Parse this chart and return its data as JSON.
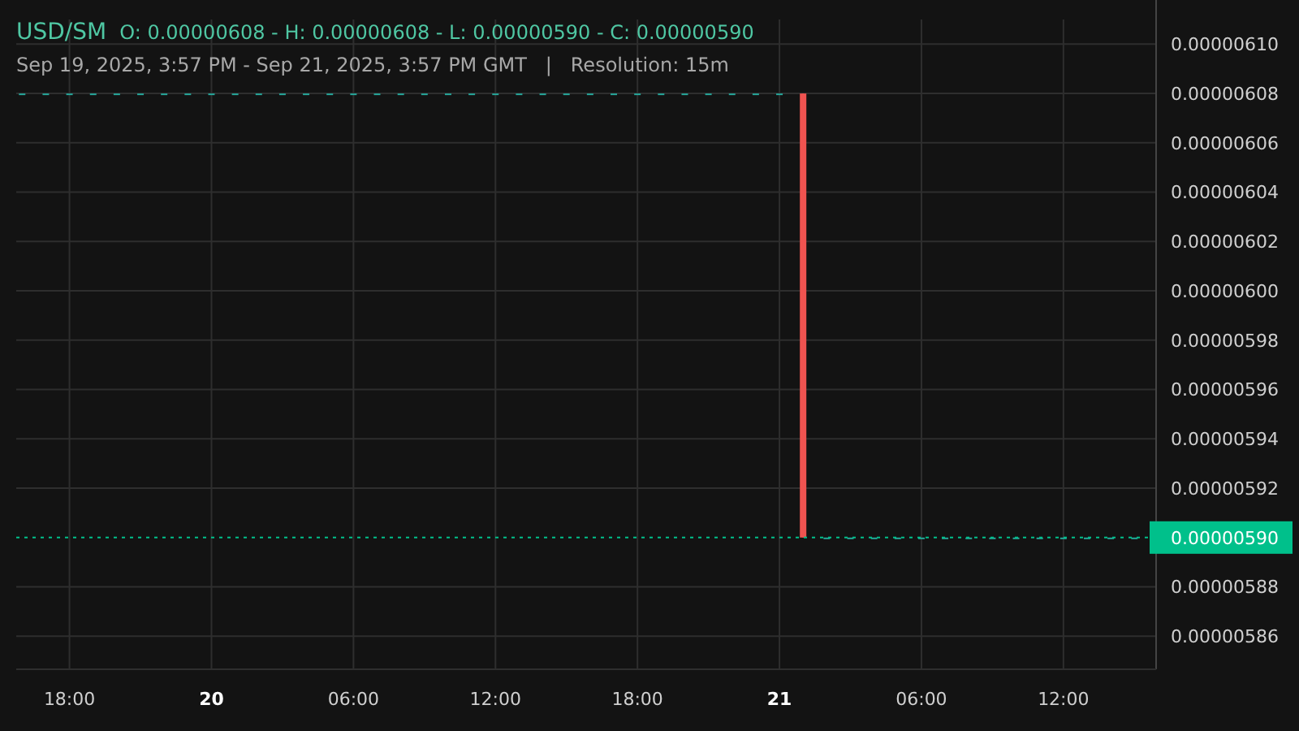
{
  "chart_data": {
    "type": "candlestick",
    "title": "USD/SM",
    "subtitle": "Sep 19, 2025, 3:57 PM - Sep 21, 2025, 3:57 PM GMT   |   Resolution: 15m",
    "annotations": [
      "O: 0.00000608 - H: 0.00000608 - L: 0.00000590 - C: 0.00000590"
    ],
    "x": [
      "2025-09-19T16:00",
      "2025-09-19T17:00",
      "2025-09-19T18:00",
      "2025-09-19T19:00",
      "2025-09-19T20:00",
      "2025-09-19T21:00",
      "2025-09-19T22:00",
      "2025-09-19T23:00",
      "2025-09-20T00:00",
      "2025-09-20T01:00",
      "2025-09-20T02:00",
      "2025-09-20T03:00",
      "2025-09-20T04:00",
      "2025-09-20T05:00",
      "2025-09-20T06:00",
      "2025-09-20T07:00",
      "2025-09-20T08:00",
      "2025-09-20T09:00",
      "2025-09-20T10:00",
      "2025-09-20T11:00",
      "2025-09-20T12:00",
      "2025-09-20T13:00",
      "2025-09-20T14:00",
      "2025-09-20T15:00",
      "2025-09-20T16:00",
      "2025-09-20T17:00",
      "2025-09-20T18:00",
      "2025-09-20T19:00",
      "2025-09-20T20:00",
      "2025-09-20T21:00",
      "2025-09-20T22:00",
      "2025-09-20T23:00",
      "2025-09-21T00:00",
      "2025-09-21T01:00",
      "2025-09-21T02:00",
      "2025-09-21T03:00",
      "2025-09-21T04:00",
      "2025-09-21T05:00",
      "2025-09-21T06:00",
      "2025-09-21T07:00",
      "2025-09-21T08:00",
      "2025-09-21T09:00",
      "2025-09-21T10:00",
      "2025-09-21T11:00",
      "2025-09-21T12:00",
      "2025-09-21T13:00",
      "2025-09-21T14:00",
      "2025-09-21T15:00"
    ],
    "ohlc": [
      [
        6.08e-06,
        6.08e-06,
        6.08e-06,
        6.08e-06
      ],
      [
        6.08e-06,
        6.08e-06,
        6.08e-06,
        6.08e-06
      ],
      [
        6.08e-06,
        6.08e-06,
        6.08e-06,
        6.08e-06
      ],
      [
        6.08e-06,
        6.08e-06,
        6.08e-06,
        6.08e-06
      ],
      [
        6.08e-06,
        6.08e-06,
        6.08e-06,
        6.08e-06
      ],
      [
        6.08e-06,
        6.08e-06,
        6.08e-06,
        6.08e-06
      ],
      [
        6.08e-06,
        6.08e-06,
        6.08e-06,
        6.08e-06
      ],
      [
        6.08e-06,
        6.08e-06,
        6.08e-06,
        6.08e-06
      ],
      [
        6.08e-06,
        6.08e-06,
        6.08e-06,
        6.08e-06
      ],
      [
        6.08e-06,
        6.08e-06,
        6.08e-06,
        6.08e-06
      ],
      [
        6.08e-06,
        6.08e-06,
        6.08e-06,
        6.08e-06
      ],
      [
        6.08e-06,
        6.08e-06,
        6.08e-06,
        6.08e-06
      ],
      [
        6.08e-06,
        6.08e-06,
        6.08e-06,
        6.08e-06
      ],
      [
        6.08e-06,
        6.08e-06,
        6.08e-06,
        6.08e-06
      ],
      [
        6.08e-06,
        6.08e-06,
        6.08e-06,
        6.08e-06
      ],
      [
        6.08e-06,
        6.08e-06,
        6.08e-06,
        6.08e-06
      ],
      [
        6.08e-06,
        6.08e-06,
        6.08e-06,
        6.08e-06
      ],
      [
        6.08e-06,
        6.08e-06,
        6.08e-06,
        6.08e-06
      ],
      [
        6.08e-06,
        6.08e-06,
        6.08e-06,
        6.08e-06
      ],
      [
        6.08e-06,
        6.08e-06,
        6.08e-06,
        6.08e-06
      ],
      [
        6.08e-06,
        6.08e-06,
        6.08e-06,
        6.08e-06
      ],
      [
        6.08e-06,
        6.08e-06,
        6.08e-06,
        6.08e-06
      ],
      [
        6.08e-06,
        6.08e-06,
        6.08e-06,
        6.08e-06
      ],
      [
        6.08e-06,
        6.08e-06,
        6.08e-06,
        6.08e-06
      ],
      [
        6.08e-06,
        6.08e-06,
        6.08e-06,
        6.08e-06
      ],
      [
        6.08e-06,
        6.08e-06,
        6.08e-06,
        6.08e-06
      ],
      [
        6.08e-06,
        6.08e-06,
        6.08e-06,
        6.08e-06
      ],
      [
        6.08e-06,
        6.08e-06,
        6.08e-06,
        6.08e-06
      ],
      [
        6.08e-06,
        6.08e-06,
        6.08e-06,
        6.08e-06
      ],
      [
        6.08e-06,
        6.08e-06,
        6.08e-06,
        6.08e-06
      ],
      [
        6.08e-06,
        6.08e-06,
        6.08e-06,
        6.08e-06
      ],
      [
        6.08e-06,
        6.08e-06,
        6.08e-06,
        6.08e-06
      ],
      [
        6.08e-06,
        6.08e-06,
        6.08e-06,
        6.08e-06
      ],
      [
        6.08e-06,
        6.08e-06,
        5.9e-06,
        5.9e-06
      ],
      [
        5.9e-06,
        5.9e-06,
        5.9e-06,
        5.9e-06
      ],
      [
        5.9e-06,
        5.9e-06,
        5.9e-06,
        5.9e-06
      ],
      [
        5.9e-06,
        5.9e-06,
        5.9e-06,
        5.9e-06
      ],
      [
        5.9e-06,
        5.9e-06,
        5.9e-06,
        5.9e-06
      ],
      [
        5.9e-06,
        5.9e-06,
        5.9e-06,
        5.9e-06
      ],
      [
        5.9e-06,
        5.9e-06,
        5.9e-06,
        5.9e-06
      ],
      [
        5.9e-06,
        5.9e-06,
        5.9e-06,
        5.9e-06
      ],
      [
        5.9e-06,
        5.9e-06,
        5.9e-06,
        5.9e-06
      ],
      [
        5.9e-06,
        5.9e-06,
        5.9e-06,
        5.9e-06
      ],
      [
        5.9e-06,
        5.9e-06,
        5.9e-06,
        5.9e-06
      ],
      [
        5.9e-06,
        5.9e-06,
        5.9e-06,
        5.9e-06
      ],
      [
        5.9e-06,
        5.9e-06,
        5.9e-06,
        5.9e-06
      ],
      [
        5.9e-06,
        5.9e-06,
        5.9e-06,
        5.9e-06
      ],
      [
        5.9e-06,
        5.9e-06,
        5.9e-06,
        5.9e-06
      ]
    ],
    "xlim": [
      "2025-09-19T15:45",
      "2025-09-21T15:55"
    ],
    "xticks": [
      {
        "value": "2025-09-19T18:00",
        "label": "18:00"
      },
      {
        "value": "2025-09-20T00:00",
        "label": "20"
      },
      {
        "value": "2025-09-20T06:00",
        "label": "06:00"
      },
      {
        "value": "2025-09-20T12:00",
        "label": "12:00"
      },
      {
        "value": "2025-09-20T18:00",
        "label": "18:00"
      },
      {
        "value": "2025-09-21T00:00",
        "label": "21"
      },
      {
        "value": "2025-09-21T06:00",
        "label": "06:00"
      },
      {
        "value": "2025-09-21T12:00",
        "label": "12:00"
      }
    ],
    "ylim": [
      5.8466e-06,
      6.11e-06
    ],
    "yticks": [
      {
        "value": 5.86e-06,
        "label": "0.00000586"
      },
      {
        "value": 5.88e-06,
        "label": "0.00000588"
      },
      {
        "value": 5.92e-06,
        "label": "0.00000592"
      },
      {
        "value": 5.94e-06,
        "label": "0.00000594"
      },
      {
        "value": 5.96e-06,
        "label": "0.00000596"
      },
      {
        "value": 5.98e-06,
        "label": "0.00000598"
      },
      {
        "value": 6e-06,
        "label": "0.00000600"
      },
      {
        "value": 6.02e-06,
        "label": "0.00000602"
      },
      {
        "value": 6.04e-06,
        "label": "0.00000604"
      },
      {
        "value": 6.06e-06,
        "label": "0.00000606"
      },
      {
        "value": 6.08e-06,
        "label": "0.00000608"
      },
      {
        "value": 6.1e-06,
        "label": "0.00000610"
      }
    ],
    "ref_lines": [
      {
        "axis": "y",
        "value": 5.9e-06,
        "label": "0.00000590",
        "color": "#00c08b",
        "line_style": "dotted"
      }
    ],
    "grid": true
  }
}
